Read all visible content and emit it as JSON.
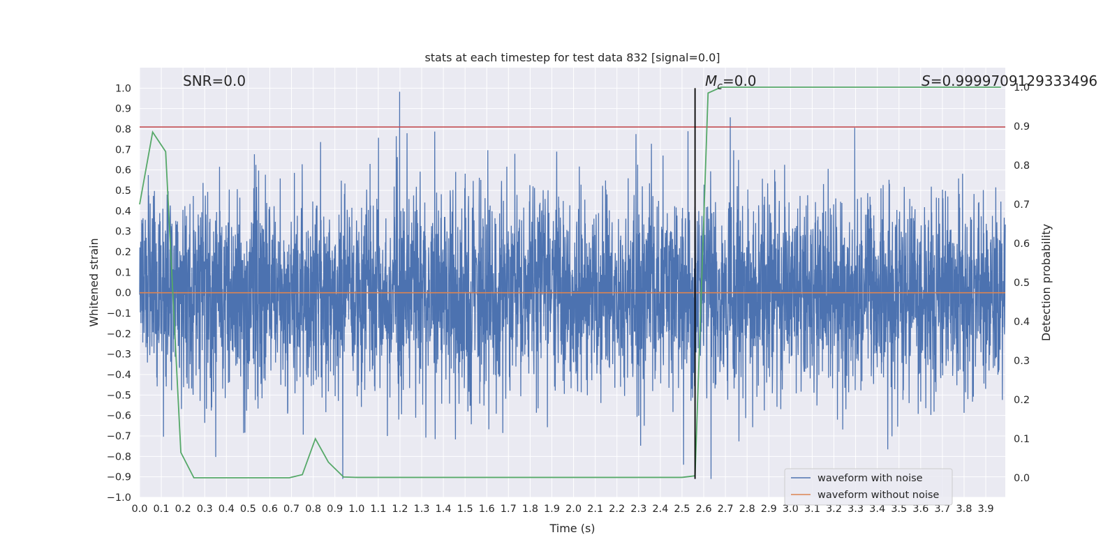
{
  "chart_data": {
    "type": "line",
    "title": "stats at each timestep for test data 832 [signal=0.0]",
    "xlabel": "Time (s)",
    "ylabel": "Whitened strain",
    "ylabel_right": "Detection probability",
    "xlim": [
      0.0,
      3.99
    ],
    "ylim": [
      -1.0,
      1.1
    ],
    "ylim_right": [
      -0.05,
      1.05
    ],
    "xticks": [
      "0.0",
      "0.1",
      "0.2",
      "0.3",
      "0.4",
      "0.5",
      "0.6",
      "0.7",
      "0.8",
      "0.9",
      "1.0",
      "1.1",
      "1.2",
      "1.3",
      "1.4",
      "1.5",
      "1.6",
      "1.7",
      "1.8",
      "1.9",
      "2.0",
      "2.1",
      "2.2",
      "2.3",
      "2.4",
      "2.5",
      "2.6",
      "2.7",
      "2.8",
      "2.9",
      "3.0",
      "3.1",
      "3.2",
      "3.3",
      "3.4",
      "3.5",
      "3.6",
      "3.7",
      "3.8",
      "3.9"
    ],
    "yticks": [
      "−1.0",
      "−0.9",
      "−0.8",
      "−0.7",
      "−0.6",
      "−0.5",
      "−0.4",
      "−0.3",
      "−0.2",
      "−0.1",
      "0.0",
      "0.1",
      "0.2",
      "0.3",
      "0.4",
      "0.5",
      "0.6",
      "0.7",
      "0.8",
      "0.9",
      "1.0"
    ],
    "yticks_right": [
      "0.0",
      "0.1",
      "0.2",
      "0.3",
      "0.4",
      "0.5",
      "0.6",
      "0.7",
      "0.8",
      "0.9",
      "1.0"
    ],
    "grid": true,
    "legend_position": "lower-right",
    "annotations": {
      "snr": "SNR=0.0",
      "mc_symbol": "M",
      "mc_sub": "c",
      "mc_value": "=0.0",
      "s_symbol": "S",
      "s_value": "=0.9999709129333496"
    },
    "noise_series": {
      "name": "waveform with noise",
      "color": "#4c72b0",
      "description_range": [
        -0.91,
        1.0
      ],
      "seed": 832
    },
    "clean_series": {
      "name": "waveform without noise",
      "color": "#dd8452",
      "value": 0.0
    },
    "threshold_line": {
      "y": 0.81,
      "color": "#c44e52"
    },
    "marker_line": {
      "x": 2.56,
      "y_range": [
        -0.91,
        1.0
      ],
      "color": "#000000"
    },
    "probability_series": {
      "color": "#55a868",
      "x": [
        0.0,
        0.06,
        0.12,
        0.19,
        0.25,
        0.5,
        0.69,
        0.75,
        0.81,
        0.87,
        0.94,
        1.0,
        1.25,
        1.5,
        2.0,
        2.5,
        2.56,
        2.62,
        2.68,
        3.0,
        3.5,
        3.97
      ],
      "y": [
        0.7,
        0.885,
        0.835,
        0.065,
        0.0,
        0.0,
        0.0,
        0.008,
        0.1,
        0.04,
        0.002,
        0.001,
        0.001,
        0.001,
        0.001,
        0.001,
        0.005,
        0.985,
        1.0,
        1.0,
        1.0,
        1.0
      ]
    },
    "colors": {
      "plot_bg": "#eaeaf2",
      "grid": "#ffffff"
    }
  }
}
